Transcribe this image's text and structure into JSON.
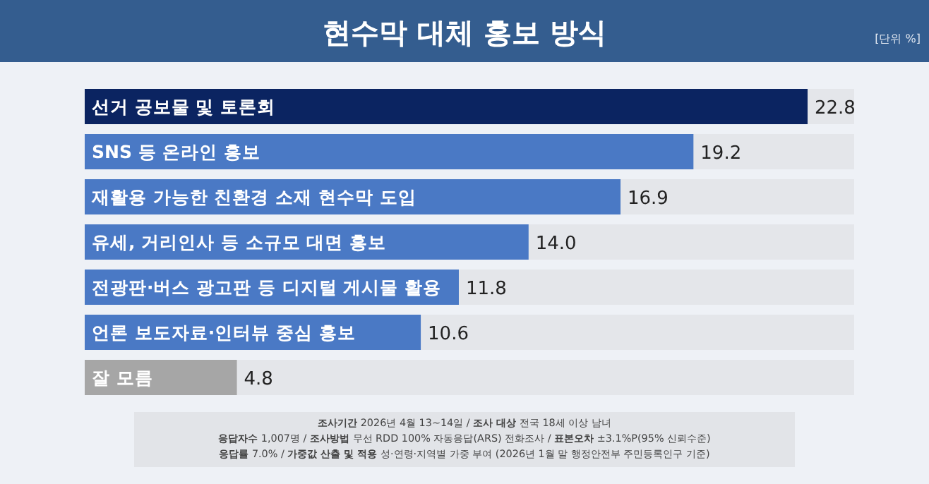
{
  "chart_data": {
    "type": "bar",
    "orientation": "horizontal",
    "title": "현수막 대체 홍보 방식",
    "subtitle": "[단위 %]",
    "categories": [
      "선거 공보물 및 토론회",
      "SNS 등 온라인 홍보",
      "재활용 가능한 친환경 소재 현수막 도입",
      "유세, 거리인사 등 소규모 대면 홍보",
      "전광판·버스 광고판 등 디지털 게시물 활용",
      "언론 보도자료·인터뷰 중심 홍보",
      "잘 모름"
    ],
    "values": [
      22.8,
      19.2,
      16.9,
      14.0,
      11.8,
      10.6,
      4.8
    ],
    "value_labels": [
      "22.8",
      "19.2",
      "16.9",
      "14.0",
      "11.8",
      "10.6",
      "4.8"
    ],
    "colors": [
      "#0b2461",
      "#4a79c5",
      "#4a79c5",
      "#4a79c5",
      "#4a79c5",
      "#4a79c5",
      "#a6a6a6"
    ],
    "annotations": [
      "**조사기간** 2026년 4월 13~14일 / **조사 대상** 전국 18세 이상 남녀",
      "**응답자수** 1,007명 / **조사방법** 무선 RDD 100% 자동응답(ARS) 전화조사 / **표본오차** ±3.1%P(95% 신뢰수준)",
      "**응답률** 7.0% / **가중값 산출 및 적용** 성·연령·지역별 가중 부여 (2026년 1월 말 행정안전부 주민등록인구 기준)"
    ]
  }
}
